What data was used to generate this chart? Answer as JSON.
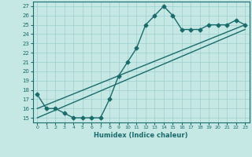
{
  "title": "",
  "xlabel": "Humidex (Indice chaleur)",
  "xlim": [
    -0.5,
    23.5
  ],
  "ylim": [
    14.5,
    27.5
  ],
  "xticks": [
    0,
    1,
    2,
    3,
    4,
    5,
    6,
    7,
    8,
    9,
    10,
    11,
    12,
    13,
    14,
    15,
    16,
    17,
    18,
    19,
    20,
    21,
    22,
    23
  ],
  "yticks": [
    15,
    16,
    17,
    18,
    19,
    20,
    21,
    22,
    23,
    24,
    25,
    26,
    27
  ],
  "bg_color": "#c5e8e5",
  "line_color": "#1a6b6b",
  "grid_color": "#9ecece",
  "curve_x": [
    0,
    1,
    2,
    3,
    4,
    5,
    6,
    7,
    8,
    9,
    10,
    11,
    12,
    13,
    14,
    15,
    16,
    17,
    18,
    19,
    20,
    21,
    22,
    23
  ],
  "curve_y": [
    17.5,
    16.0,
    16.0,
    15.5,
    15.0,
    15.0,
    15.0,
    15.0,
    17.0,
    19.5,
    21.0,
    22.5,
    25.0,
    26.0,
    27.0,
    26.0,
    24.5,
    24.5,
    24.5,
    25.0,
    25.0,
    25.0,
    25.5,
    25.0
  ],
  "line1_x": [
    0,
    23
  ],
  "line1_y": [
    16.0,
    25.0
  ],
  "line2_x": [
    0,
    23
  ],
  "line2_y": [
    15.0,
    24.5
  ],
  "marker_size": 2.5,
  "line_width": 1.0
}
